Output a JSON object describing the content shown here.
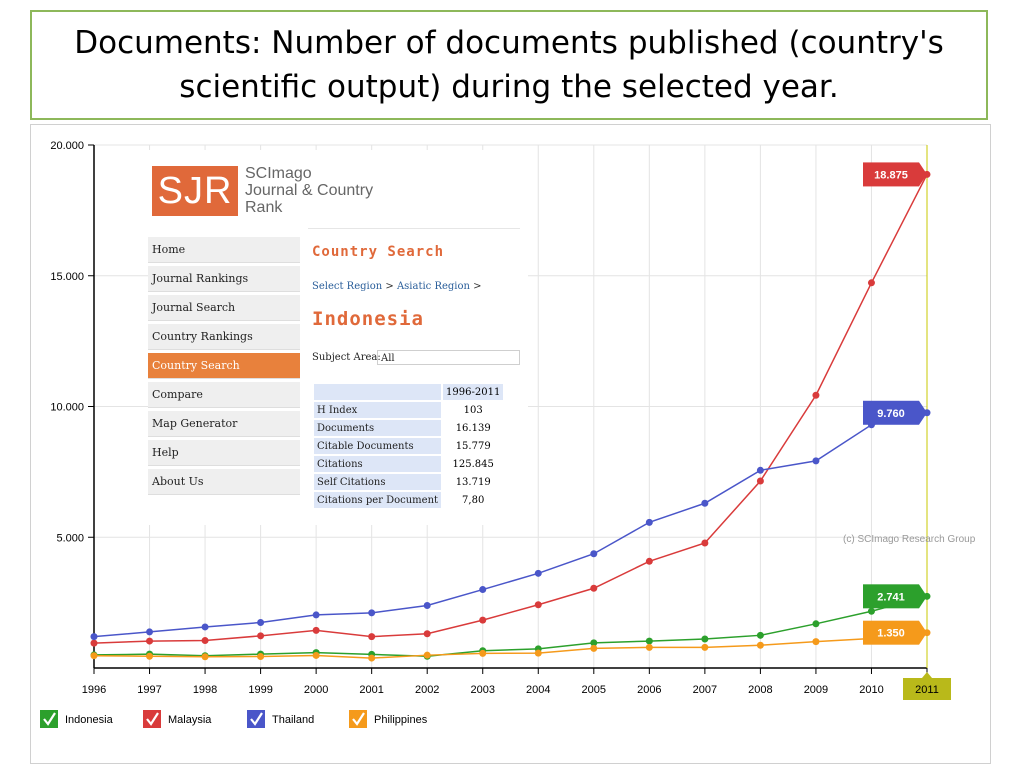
{
  "slide": {
    "title_line1": "Documents: Number of documents published (country's",
    "title_line2": "scientific output) during the selected year."
  },
  "sjr": {
    "logo": "SJR",
    "logo_lines": [
      "SCImago",
      "Journal & Country",
      "Rank"
    ],
    "nav": [
      "Home",
      "Journal Rankings",
      "Journal Search",
      "Country Rankings",
      "Country Search",
      "Compare",
      "Map Generator",
      "Help",
      "About Us"
    ],
    "active_nav": "Country Search",
    "section_title": "Country Search",
    "breadcrumb": {
      "region": "Select Region",
      "sep1": " > ",
      "subregion": "Asiatic Region",
      "sep2": " >"
    },
    "country": "Indonesia",
    "subject_label": "Subject Area:",
    "subject_value": "All",
    "table_header": "1996-2011",
    "table": [
      {
        "label": "H Index",
        "value": "103"
      },
      {
        "label": "Documents",
        "value": "16.139"
      },
      {
        "label": "Citable Documents",
        "value": "15.779"
      },
      {
        "label": "Citations",
        "value": "125.845"
      },
      {
        "label": "Self Citations",
        "value": "13.719"
      },
      {
        "label": "Citations per Document",
        "value": "7,80"
      }
    ]
  },
  "copyright": "(c) SCImago Research Group",
  "chart_data": {
    "type": "line",
    "x": [
      1996,
      1997,
      1998,
      1999,
      2000,
      2001,
      2002,
      2003,
      2004,
      2005,
      2006,
      2007,
      2008,
      2009,
      2010,
      2011
    ],
    "x_labels": [
      "1996",
      "1997",
      "1998",
      "1999",
      "2000",
      "2001",
      "2002",
      "2003",
      "2004",
      "2005",
      "2006",
      "2007",
      "2008",
      "2009",
      "2010",
      "2011"
    ],
    "highlighted_x": "2011",
    "ylim": [
      0,
      20000
    ],
    "yticks": [
      5000,
      10000,
      15000,
      20000
    ],
    "ytick_labels": [
      "5.000",
      "10.000",
      "15.000",
      "20.000"
    ],
    "grid": true,
    "legend_position": "bottom-left",
    "series": [
      {
        "name": "Indonesia",
        "color": "#2ca02c",
        "end_label": "2.741",
        "values": [
          500,
          530,
          470,
          530,
          590,
          520,
          450,
          660,
          730,
          960,
          1030,
          1110,
          1250,
          1690,
          2170,
          2741
        ]
      },
      {
        "name": "Malaysia",
        "color": "#d93b3b",
        "end_label": "18.875",
        "values": [
          950,
          1030,
          1050,
          1230,
          1440,
          1200,
          1310,
          1830,
          2420,
          3050,
          4080,
          4780,
          7150,
          10430,
          14730,
          18875
        ]
      },
      {
        "name": "Thailand",
        "color": "#4a56c9",
        "end_label": "9.760",
        "values": [
          1200,
          1380,
          1570,
          1740,
          2030,
          2110,
          2390,
          3000,
          3620,
          4370,
          5570,
          6300,
          7560,
          7920,
          9300,
          9760
        ]
      },
      {
        "name": "Philippines",
        "color": "#f59a1b",
        "end_label": "1.350",
        "values": [
          470,
          450,
          430,
          440,
          480,
          380,
          490,
          560,
          570,
          750,
          790,
          790,
          870,
          1010,
          1130,
          1350
        ]
      }
    ]
  }
}
